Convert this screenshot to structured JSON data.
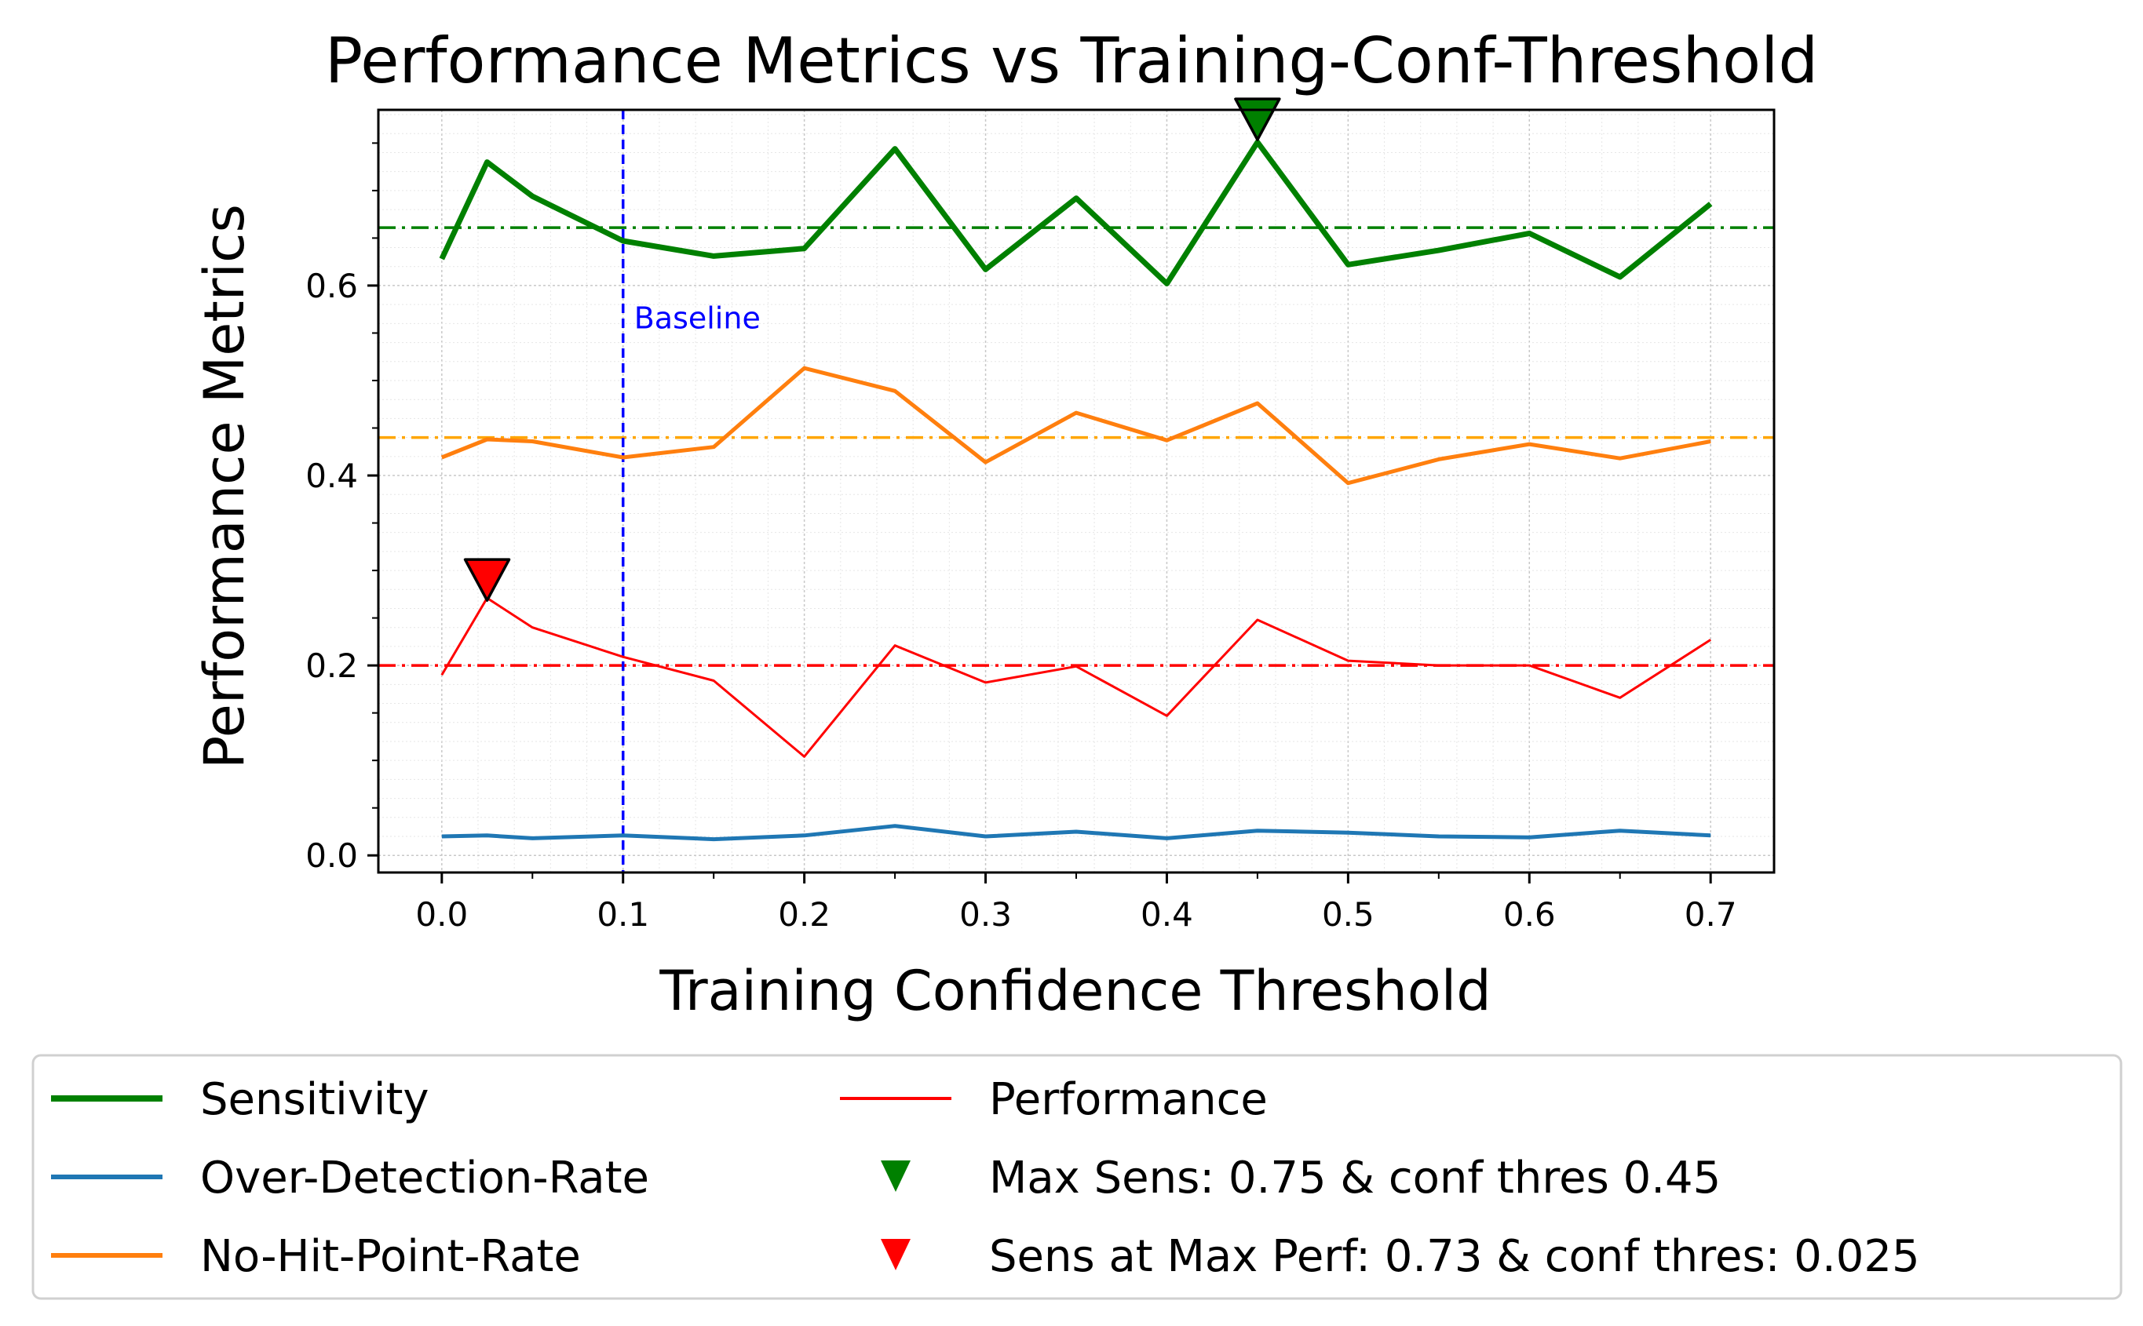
{
  "chart_data": {
    "type": "line",
    "title": "Performance Metrics vs Training-Conf-Threshold",
    "xlabel": "Training Confidence Threshold",
    "ylabel": "Performance Metrics",
    "xlim": [
      -0.035,
      0.735
    ],
    "ylim": [
      -0.018,
      0.785
    ],
    "xticks": [
      0.0,
      0.1,
      0.2,
      0.3,
      0.4,
      0.5,
      0.6,
      0.7
    ],
    "xtick_labels": [
      "0.0",
      "0.1",
      "0.2",
      "0.3",
      "0.4",
      "0.5",
      "0.6",
      "0.7"
    ],
    "yticks": [
      0.0,
      0.2,
      0.4,
      0.6
    ],
    "ytick_labels": [
      "0.0",
      "0.2",
      "0.4",
      "0.6"
    ],
    "grid": true,
    "legend_position": "below",
    "x": [
      0.0,
      0.025,
      0.05,
      0.1,
      0.15,
      0.2,
      0.25,
      0.3,
      0.35,
      0.4,
      0.45,
      0.5,
      0.55,
      0.6,
      0.65,
      0.7
    ],
    "series": [
      {
        "name": "Sensitivity",
        "color": "#008000",
        "width": 7,
        "values": [
          0.628,
          0.73,
          0.694,
          0.647,
          0.631,
          0.639,
          0.744,
          0.617,
          0.692,
          0.602,
          0.751,
          0.622,
          0.637,
          0.655,
          0.609,
          0.686
        ]
      },
      {
        "name": "Over-Detection-Rate",
        "color": "#1f77b4",
        "width": 5,
        "values": [
          0.02,
          0.021,
          0.018,
          0.021,
          0.017,
          0.021,
          0.031,
          0.02,
          0.025,
          0.018,
          0.026,
          0.024,
          0.02,
          0.019,
          0.026,
          0.021
        ]
      },
      {
        "name": "No-Hit-Point-Rate",
        "color": "#ff7f0e",
        "width": 5,
        "values": [
          0.419,
          0.438,
          0.436,
          0.419,
          0.43,
          0.513,
          0.489,
          0.414,
          0.466,
          0.437,
          0.476,
          0.392,
          0.417,
          0.433,
          0.418,
          0.436
        ]
      },
      {
        "name": "Performance",
        "color": "#ff0000",
        "width": 3,
        "values": [
          0.19,
          0.271,
          0.24,
          0.209,
          0.184,
          0.104,
          0.221,
          0.182,
          0.199,
          0.147,
          0.248,
          0.205,
          0.2,
          0.2,
          0.166,
          0.227
        ]
      }
    ],
    "hlines": [
      {
        "y": 0.661,
        "color": "#008000"
      },
      {
        "y": 0.44,
        "color": "#ffa500"
      },
      {
        "y": 0.2,
        "color": "#ff0000"
      }
    ],
    "vline": {
      "x": 0.1,
      "color": "#0000ff",
      "label": "Baseline"
    },
    "markers": [
      {
        "name": "Max Sens: 0.75 & conf thres 0.45",
        "x": 0.45,
        "y": 0.775,
        "color": "#008000"
      },
      {
        "name": "Sens at Max Perf: 0.73 & conf thres: 0.025",
        "x": 0.025,
        "y": 0.29,
        "color": "#ff0000"
      }
    ]
  }
}
